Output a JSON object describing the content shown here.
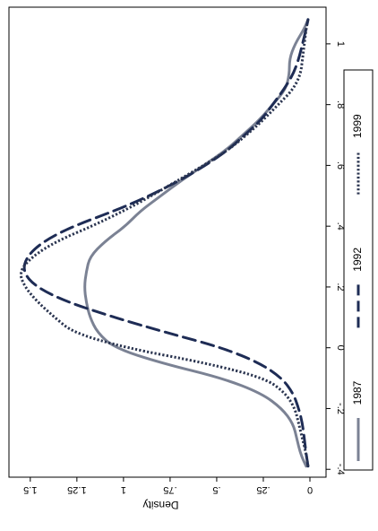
{
  "chart_data": {
    "type": "line",
    "orientation": "rotated-90",
    "xlabel": "",
    "ylabel": "Density",
    "xlim": [
      -0.42,
      1.1
    ],
    "ylim": [
      0,
      1.6
    ],
    "xticks": [
      "-.4",
      "-.2",
      "0",
      ".2",
      ".4",
      ".6",
      ".8",
      "1"
    ],
    "xtick_values": [
      -0.4,
      -0.2,
      0,
      0.2,
      0.4,
      0.6,
      0.8,
      1.0
    ],
    "yticks": [
      "0",
      ".25",
      ".5",
      ".75",
      "1",
      "1.25",
      "1.5"
    ],
    "ytick_values": [
      0,
      0.25,
      0.5,
      0.75,
      1.0,
      1.25,
      1.5
    ],
    "grid": false,
    "legend_position": "bottom",
    "series": [
      {
        "name": "1987",
        "style": "solid",
        "color": "#7b8294",
        "x": [
          -0.39,
          -0.35,
          -0.3,
          -0.25,
          -0.2,
          -0.15,
          -0.1,
          -0.05,
          0.0,
          0.05,
          0.1,
          0.15,
          0.2,
          0.25,
          0.3,
          0.35,
          0.4,
          0.45,
          0.5,
          0.55,
          0.6,
          0.65,
          0.7,
          0.75,
          0.8,
          0.85,
          0.9,
          0.95,
          1.0,
          1.05,
          1.08
        ],
        "y": [
          0.02,
          0.05,
          0.07,
          0.09,
          0.15,
          0.26,
          0.47,
          0.8,
          1.05,
          1.14,
          1.18,
          1.2,
          1.21,
          1.2,
          1.18,
          1.1,
          0.99,
          0.91,
          0.8,
          0.69,
          0.57,
          0.45,
          0.36,
          0.27,
          0.2,
          0.13,
          0.11,
          0.11,
          0.08,
          0.03,
          0.01
        ]
      },
      {
        "name": "1992",
        "style": "dashed",
        "color": "#1e2c55",
        "x": [
          -0.39,
          -0.35,
          -0.3,
          -0.25,
          -0.2,
          -0.15,
          -0.1,
          -0.05,
          0.0,
          0.05,
          0.1,
          0.15,
          0.2,
          0.25,
          0.3,
          0.35,
          0.4,
          0.45,
          0.5,
          0.55,
          0.6,
          0.65,
          0.7,
          0.75,
          0.8,
          0.85,
          0.9,
          0.95,
          1.0,
          1.05,
          1.08
        ],
        "y": [
          0.01,
          0.02,
          0.03,
          0.04,
          0.06,
          0.09,
          0.15,
          0.27,
          0.47,
          0.77,
          1.05,
          1.3,
          1.47,
          1.54,
          1.52,
          1.43,
          1.27,
          1.05,
          0.86,
          0.7,
          0.56,
          0.44,
          0.35,
          0.26,
          0.2,
          0.14,
          0.09,
          0.06,
          0.04,
          0.02,
          0.01
        ]
      },
      {
        "name": "1999",
        "style": "dotted",
        "color": "#2b3550",
        "x": [
          -0.39,
          -0.35,
          -0.3,
          -0.25,
          -0.2,
          -0.15,
          -0.1,
          -0.05,
          0.0,
          0.05,
          0.1,
          0.15,
          0.2,
          0.25,
          0.3,
          0.35,
          0.4,
          0.45,
          0.5,
          0.55,
          0.6,
          0.65,
          0.7,
          0.75,
          0.8,
          0.85,
          0.9,
          0.95,
          1.0,
          1.05,
          1.08
        ],
        "y": [
          0.01,
          0.02,
          0.04,
          0.06,
          0.08,
          0.13,
          0.24,
          0.56,
          0.99,
          1.27,
          1.37,
          1.46,
          1.53,
          1.56,
          1.49,
          1.36,
          1.17,
          1.0,
          0.85,
          0.71,
          0.57,
          0.44,
          0.34,
          0.25,
          0.17,
          0.09,
          0.05,
          0.04,
          0.03,
          0.02,
          0.01
        ]
      }
    ]
  }
}
